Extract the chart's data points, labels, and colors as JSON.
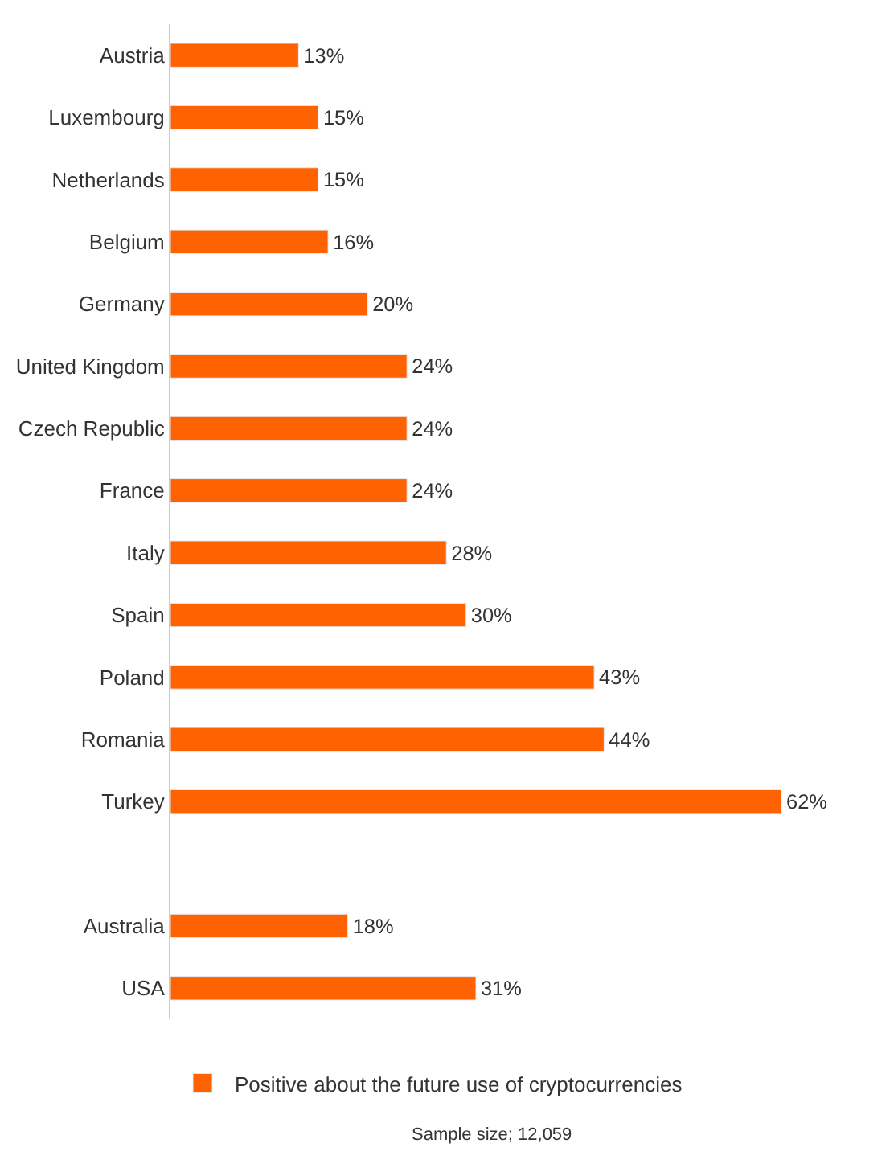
{
  "chart_data": {
    "type": "bar",
    "orientation": "horizontal",
    "categories": [
      "Austria",
      "Luxembourg",
      "Netherlands",
      "Belgium",
      "Germany",
      "United Kingdom",
      "Czech Republic",
      "France",
      "Italy",
      "Spain",
      "Poland",
      "Romania",
      "Turkey",
      null,
      "Australia",
      "USA"
    ],
    "series": [
      {
        "name": "Positive about the future use of cryptocurrencies",
        "color": "#ff6200",
        "values": [
          13,
          15,
          15,
          16,
          20,
          24,
          24,
          24,
          28,
          30,
          43,
          44,
          62,
          null,
          18,
          31
        ],
        "value_labels": [
          "13%",
          "15%",
          "15%",
          "16%",
          "20%",
          "24%",
          "24%",
          "24%",
          "28%",
          "30%",
          "43%",
          "44%",
          "62%",
          null,
          "18%",
          "31%"
        ]
      }
    ],
    "legend": "bottom",
    "annotations": [
      "Sample size; 12,059"
    ]
  }
}
